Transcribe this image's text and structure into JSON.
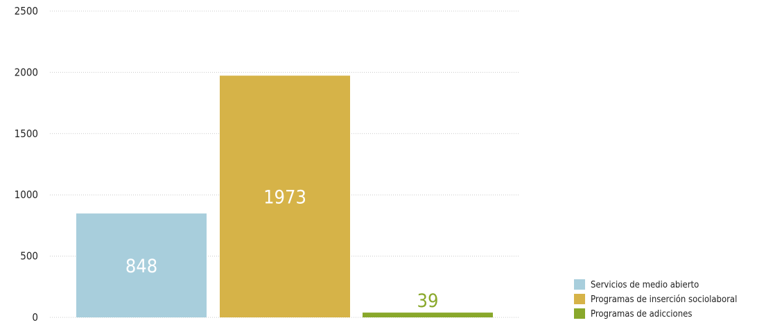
{
  "chart_data": {
    "type": "bar",
    "title": "",
    "xlabel": "",
    "ylabel": "",
    "ylim": [
      0,
      2500
    ],
    "yticks": [
      0,
      500,
      1000,
      1500,
      2000,
      2500
    ],
    "grid": true,
    "legend_position": "bottom-right",
    "categories": [
      "Servicios de medio abierto",
      "Programas de inserción sociolaboral",
      "Programas de adicciones"
    ],
    "values": [
      848,
      1973,
      39
    ],
    "colors": [
      "#a8cedc",
      "#d6b348",
      "#89a82b"
    ],
    "label_colors": [
      "#ffffff",
      "#ffffff",
      "#89a82b"
    ],
    "label_positions": [
      "inside",
      "inside",
      "above"
    ]
  }
}
